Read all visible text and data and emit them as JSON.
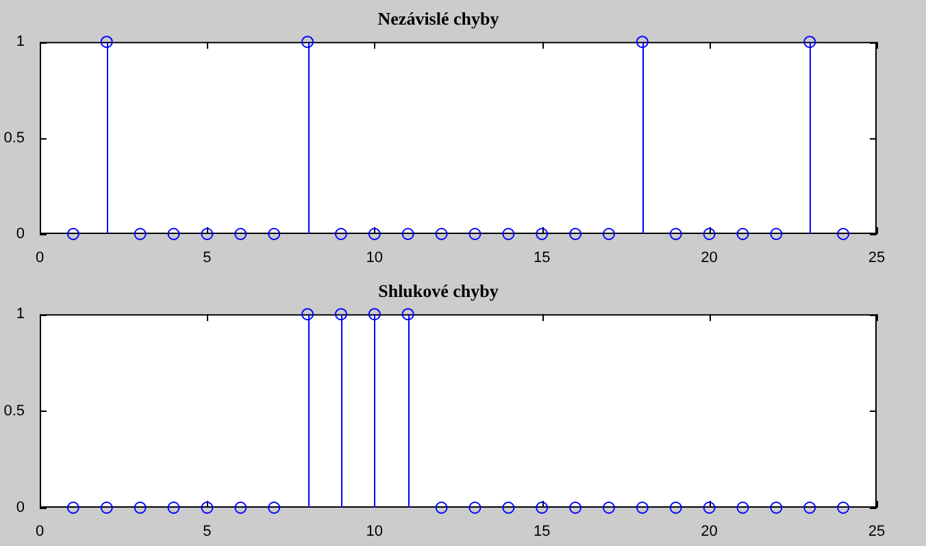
{
  "chart_data": [
    {
      "type": "lollipop",
      "title": "Nezávislé chyby",
      "x": [
        1,
        2,
        3,
        4,
        5,
        6,
        7,
        8,
        9,
        10,
        11,
        12,
        13,
        14,
        15,
        16,
        17,
        18,
        19,
        20,
        21,
        22,
        23,
        24
      ],
      "series": [
        {
          "color": "#0000ff",
          "values": [
            0,
            1,
            0,
            0,
            0,
            0,
            0,
            1,
            0,
            0,
            0,
            0,
            0,
            0,
            0,
            0,
            0,
            1,
            0,
            0,
            0,
            0,
            1,
            0
          ]
        }
      ],
      "xlim": [
        0,
        25
      ],
      "xticks": [
        0,
        5,
        10,
        15,
        20,
        25
      ],
      "ylim": [
        0,
        1
      ],
      "yticks": [
        0,
        0.5,
        1
      ],
      "marker": "circle",
      "grid": false,
      "legend": false
    },
    {
      "type": "lollipop",
      "title": "Shlukové chyby",
      "x": [
        1,
        2,
        3,
        4,
        5,
        6,
        7,
        8,
        9,
        10,
        11,
        12,
        13,
        14,
        15,
        16,
        17,
        18,
        19,
        20,
        21,
        22,
        23,
        24
      ],
      "series": [
        {
          "color": "#0000ff",
          "values": [
            0,
            0,
            0,
            0,
            0,
            0,
            0,
            1,
            1,
            1,
            1,
            0,
            0,
            0,
            0,
            0,
            0,
            0,
            0,
            0,
            0,
            0,
            0,
            0
          ]
        }
      ],
      "xlim": [
        0,
        25
      ],
      "xticks": [
        0,
        5,
        10,
        15,
        20,
        25
      ],
      "ylim": [
        0,
        1
      ],
      "yticks": [
        0,
        0.5,
        1
      ],
      "marker": "circle",
      "grid": false,
      "legend": false
    }
  ]
}
